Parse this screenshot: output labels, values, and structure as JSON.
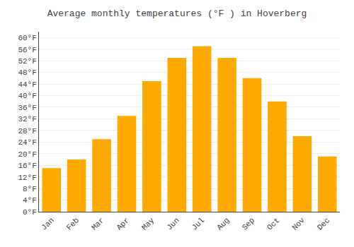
{
  "chart_data": {
    "type": "bar",
    "title": "Average monthly temperatures (°F ) in Hoverberg",
    "categories": [
      "Jan",
      "Feb",
      "Mar",
      "Apr",
      "May",
      "Jun",
      "Jul",
      "Aug",
      "Sep",
      "Oct",
      "Nov",
      "Dec"
    ],
    "values": [
      15,
      18,
      25,
      33,
      45,
      53,
      57,
      53,
      46,
      38,
      26,
      19
    ],
    "color": "#FFAA00",
    "ylim": [
      0,
      62
    ],
    "yticks": [
      {
        "value": 0,
        "label": "0°F"
      },
      {
        "value": 4,
        "label": "4°F"
      },
      {
        "value": 8,
        "label": "8°F"
      },
      {
        "value": 12,
        "label": "12°F"
      },
      {
        "value": 16,
        "label": "16°F"
      },
      {
        "value": 20,
        "label": "20°F"
      },
      {
        "value": 24,
        "label": "24°F"
      },
      {
        "value": 28,
        "label": "28°F"
      },
      {
        "value": 32,
        "label": "32°F"
      },
      {
        "value": 36,
        "label": "36°F"
      },
      {
        "value": 40,
        "label": "40°F"
      },
      {
        "value": 44,
        "label": "44°F"
      },
      {
        "value": 48,
        "label": "48°F"
      },
      {
        "value": 52,
        "label": "52°F"
      },
      {
        "value": 56,
        "label": "56°F"
      },
      {
        "value": 60,
        "label": "60°F"
      }
    ],
    "grid": true
  }
}
